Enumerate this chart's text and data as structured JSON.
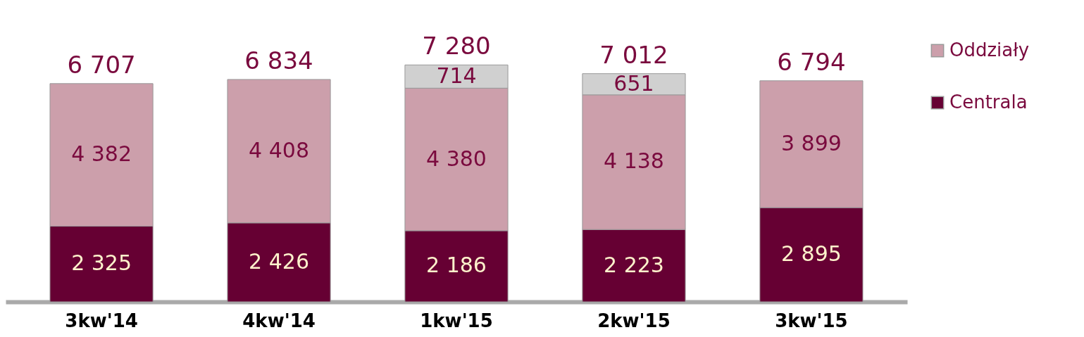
{
  "chart_data": {
    "type": "bar",
    "stacked": true,
    "categories": [
      "3kw'14",
      "4kw'14",
      "1kw'15",
      "2kw'15",
      "3kw'15"
    ],
    "series": [
      {
        "name": "Centrala",
        "color": "#660033",
        "values": [
          2325,
          2426,
          2186,
          2223,
          2895
        ],
        "value_labels": [
          "2 325",
          "2 426",
          "2 186",
          "2 223",
          "2 895"
        ]
      },
      {
        "name": "Oddziały",
        "color": "#cc9fab",
        "values": [
          4382,
          4408,
          4380,
          4138,
          3899
        ],
        "value_labels": [
          "4 382",
          "4 408",
          "4 380",
          "4 138",
          "3 899"
        ]
      },
      {
        "color": "#d0d0d0",
        "values": [
          null,
          null,
          714,
          651,
          null
        ],
        "value_labels": [
          null,
          null,
          "714",
          "651",
          null
        ]
      }
    ],
    "totals": [
      "6 707",
      "6 834",
      "7 280",
      "7 012",
      "6 794"
    ],
    "legend": "right"
  }
}
